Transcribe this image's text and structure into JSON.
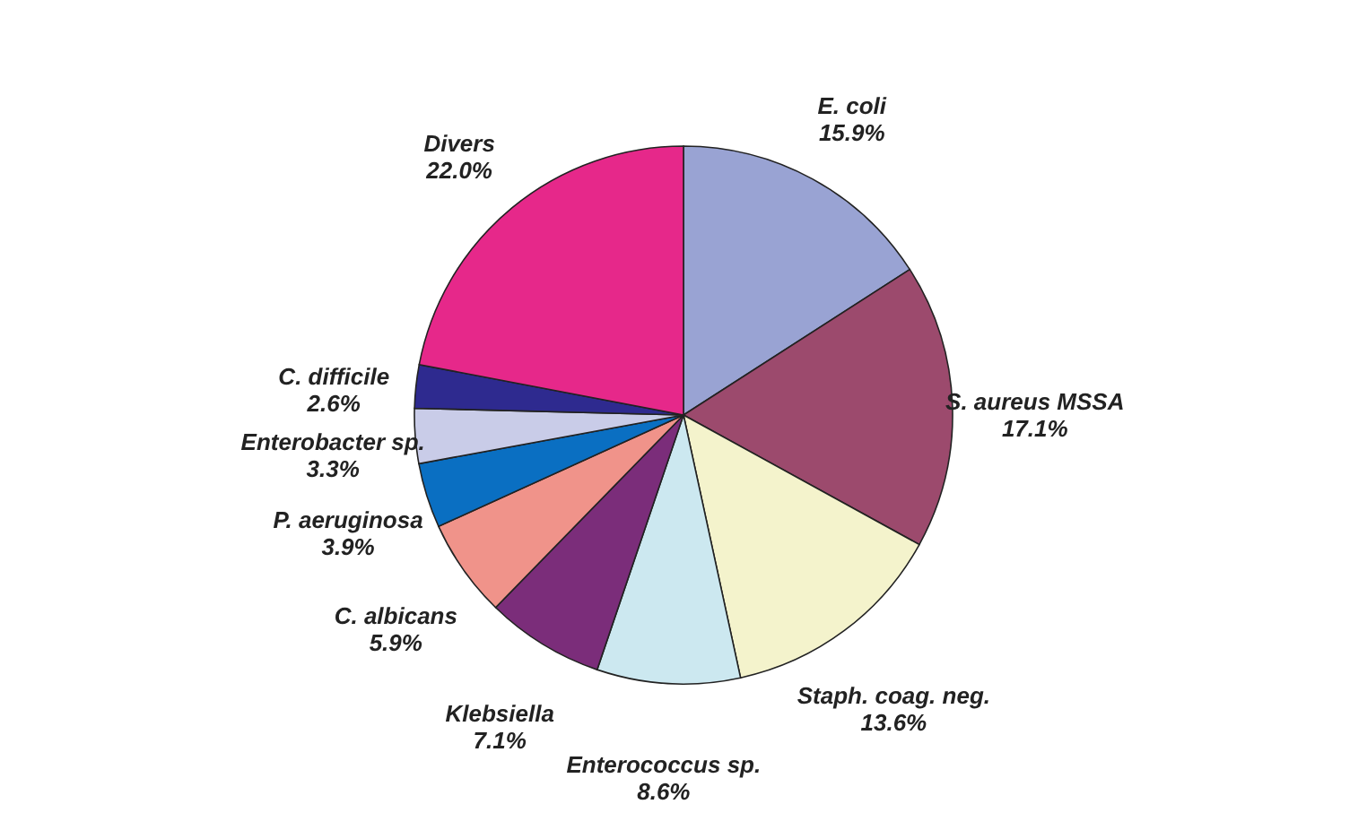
{
  "chart_data": {
    "type": "pie",
    "categories": [
      "E. coli",
      "S. aureus MSSA",
      "Staph. coag. neg.",
      "Enterococcus sp.",
      "Klebsiella",
      "C. albicans",
      "P. aeruginosa",
      "Enterobacter sp.",
      "C. difficile",
      "Divers"
    ],
    "values": [
      15.9,
      17.1,
      13.6,
      8.6,
      7.1,
      5.9,
      3.9,
      3.3,
      2.6,
      22.0
    ],
    "value_labels": [
      "15.9%",
      "17.1%",
      "13.6%",
      "8.6%",
      "7.1%",
      "5.9%",
      "3.9%",
      "3.3%",
      "2.6%",
      "22.0%"
    ],
    "colors": [
      "#99a3d3",
      "#9c4a6d",
      "#f4f3cc",
      "#cce8f0",
      "#7b2d7a",
      "#f0938a",
      "#0a6fc2",
      "#c9cce8",
      "#2e2a8f",
      "#e6288a"
    ],
    "legend": false
  }
}
